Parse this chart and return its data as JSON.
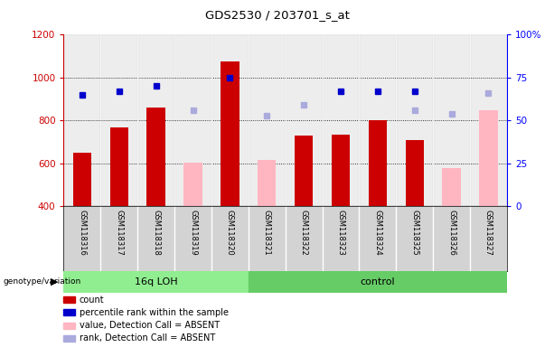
{
  "title": "GDS2530 / 203701_s_at",
  "samples": [
    "GSM118316",
    "GSM118317",
    "GSM118318",
    "GSM118319",
    "GSM118320",
    "GSM118321",
    "GSM118322",
    "GSM118323",
    "GSM118324",
    "GSM118325",
    "GSM118326",
    "GSM118327"
  ],
  "count_values": [
    650,
    770,
    860,
    null,
    1075,
    null,
    730,
    735,
    800,
    710,
    null,
    null
  ],
  "absent_value": [
    null,
    null,
    null,
    605,
    null,
    615,
    null,
    null,
    null,
    null,
    580,
    850
  ],
  "percentile_rank_pct": [
    65,
    67,
    70,
    null,
    75,
    null,
    null,
    67,
    67,
    67,
    null,
    null
  ],
  "absent_rank_pct": [
    null,
    null,
    null,
    56,
    null,
    53,
    59,
    null,
    null,
    56,
    54,
    66
  ],
  "ylim_left": [
    400,
    1200
  ],
  "ylim_right": [
    0,
    100
  ],
  "yticks_left": [
    400,
    600,
    800,
    1000,
    1200
  ],
  "yticks_right": [
    0,
    25,
    50,
    75,
    100
  ],
  "bar_color": "#CC0000",
  "absent_bar_color": "#FFB6C1",
  "rank_color": "#0000CC",
  "absent_rank_color": "#AAAADD",
  "col_bg_color": "#D3D3D3",
  "group1_color": "#90EE90",
  "group2_color": "#66CC66",
  "legend_items": [
    {
      "color": "#CC0000",
      "label": "count"
    },
    {
      "color": "#0000CC",
      "label": "percentile rank within the sample"
    },
    {
      "color": "#FFB6C1",
      "label": "value, Detection Call = ABSENT"
    },
    {
      "color": "#AAAADD",
      "label": "rank, Detection Call = ABSENT"
    }
  ]
}
